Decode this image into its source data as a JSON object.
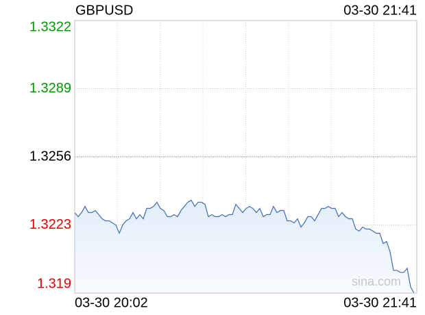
{
  "chart_data": {
    "type": "line",
    "title": "GBPUSD",
    "timestamp": "03-30 21:41",
    "watermark": "sina.com",
    "categories": [
      "03-30 20:02",
      null,
      null,
      null,
      null,
      null,
      null,
      null,
      null,
      null,
      null,
      null,
      null,
      null,
      null,
      null,
      null,
      null,
      null,
      null,
      null,
      null,
      null,
      null,
      null,
      null,
      null,
      null,
      null,
      null,
      null,
      null,
      null,
      null,
      null,
      null,
      null,
      null,
      null,
      null,
      null,
      null,
      null,
      null,
      null,
      null,
      null,
      null,
      null,
      null,
      null,
      null,
      null,
      null,
      null,
      null,
      null,
      null,
      null,
      null,
      null,
      null,
      null,
      null,
      null,
      null,
      null,
      null,
      null,
      null,
      null,
      null,
      null,
      null,
      null,
      null,
      null,
      null,
      null,
      null,
      null,
      null,
      null,
      null,
      null,
      null,
      null,
      null,
      null,
      null,
      null,
      null,
      null,
      null,
      null,
      null,
      null,
      null,
      null,
      "03-30 21:41"
    ],
    "series": [
      {
        "color": "#3d6db5",
        "values": [
          1.3229,
          1.3227,
          1.3229,
          1.3232,
          1.3229,
          1.3229,
          1.323,
          1.3228,
          1.3226,
          1.3225,
          1.3225,
          1.3224,
          1.3223,
          1.3219,
          1.3223,
          1.3225,
          1.3226,
          1.3229,
          1.3226,
          1.3228,
          1.3226,
          1.3231,
          1.3231,
          1.3232,
          1.3234,
          1.3231,
          1.323,
          1.3227,
          1.3227,
          1.3228,
          1.3227,
          1.323,
          1.3232,
          1.3234,
          1.3235,
          1.3232,
          1.3234,
          1.3234,
          1.3233,
          1.3227,
          1.3228,
          1.3227,
          1.3227,
          1.3228,
          1.3227,
          1.3228,
          1.3228,
          1.3233,
          1.3231,
          1.3229,
          1.3231,
          1.3232,
          1.3231,
          1.3229,
          1.3231,
          1.3227,
          1.3228,
          1.3228,
          1.3232,
          1.3229,
          1.323,
          1.323,
          1.3225,
          1.3225,
          1.3224,
          1.3226,
          1.3222,
          1.3224,
          1.3227,
          1.3227,
          1.3225,
          1.3228,
          1.3231,
          1.3231,
          1.3232,
          1.3231,
          1.3231,
          1.3227,
          1.3229,
          1.3227,
          1.3226,
          1.3226,
          1.3221,
          1.322,
          1.3222,
          1.3221,
          1.3221,
          1.322,
          1.3219,
          1.3219,
          1.3214,
          1.3215,
          1.321,
          1.3201,
          1.3201,
          1.32,
          1.32,
          1.3202,
          1.3193,
          1.319
        ]
      }
    ],
    "ylim": [
      1.319,
      1.3322
    ],
    "yticks": [
      1.319,
      1.3223,
      1.3256,
      1.3289,
      1.3322
    ],
    "ytick_colors": [
      "#e00000",
      "#e00000",
      "#000000",
      "#009900",
      "#009900"
    ],
    "grid": true
  }
}
